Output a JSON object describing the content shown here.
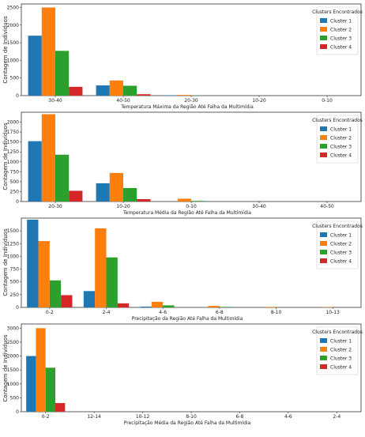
{
  "colors": {
    "Cluster 1": "#1f77b4",
    "Cluster 2": "#ff7f0e",
    "Cluster 3": "#2ca02c",
    "Cluster 4": "#d62728"
  },
  "chart_data": [
    {
      "type": "bar",
      "categories": [
        "30-40",
        "40-50",
        "20-30",
        "10-20",
        "0-10"
      ],
      "series": [
        {
          "name": "Cluster 1",
          "values": [
            1700,
            290,
            10,
            0,
            0
          ]
        },
        {
          "name": "Cluster 2",
          "values": [
            2500,
            430,
            20,
            0,
            0
          ]
        },
        {
          "name": "Cluster 3",
          "values": [
            1270,
            280,
            5,
            0,
            0
          ]
        },
        {
          "name": "Cluster 4",
          "values": [
            250,
            40,
            0,
            0,
            0
          ]
        }
      ],
      "xlabel": "Temperatura Máxima da Região Até Falha da Multimídia",
      "ylabel": "Contagem de Indivíduos",
      "ylim": [
        0,
        2600
      ],
      "yticks": [
        0,
        500,
        1000,
        1500,
        2000,
        2500
      ],
      "legend_title": "Clusters Encontrados",
      "legend_position": "top-right"
    },
    {
      "type": "bar",
      "categories": [
        "20-30",
        "10-20",
        "0-10",
        "30-40",
        "40-50"
      ],
      "series": [
        {
          "name": "Cluster 1",
          "values": [
            1520,
            460,
            0,
            0,
            0
          ]
        },
        {
          "name": "Cluster 2",
          "values": [
            2200,
            720,
            70,
            0,
            0
          ]
        },
        {
          "name": "Cluster 3",
          "values": [
            1180,
            340,
            15,
            0,
            0
          ]
        },
        {
          "name": "Cluster 4",
          "values": [
            270,
            60,
            0,
            0,
            0
          ]
        }
      ],
      "xlabel": "Temperatura Média da Região Até Falha da Multimídia",
      "ylabel": "Contagem de Indivíduos",
      "ylim": [
        0,
        2250
      ],
      "yticks": [
        0,
        250,
        500,
        750,
        1000,
        1250,
        1500,
        1750,
        2000
      ],
      "legend_title": "Clusters Encontrados",
      "legend_position": "top-right"
    },
    {
      "type": "bar",
      "categories": [
        "0-2",
        "2-4",
        "4-6",
        "6-8",
        "8-10",
        "10-13"
      ],
      "series": [
        {
          "name": "Cluster 1",
          "values": [
            1720,
            320,
            15,
            0,
            0,
            0
          ]
        },
        {
          "name": "Cluster 2",
          "values": [
            1300,
            1550,
            110,
            30,
            10,
            5
          ]
        },
        {
          "name": "Cluster 3",
          "values": [
            530,
            980,
            40,
            10,
            0,
            0
          ]
        },
        {
          "name": "Cluster 4",
          "values": [
            240,
            80,
            0,
            0,
            0,
            0
          ]
        }
      ],
      "xlabel": "Precipitação da Região Até Falha da Multimídia",
      "ylabel": "Contagem de Indivíduos",
      "ylim": [
        0,
        1750
      ],
      "yticks": [
        0,
        250,
        500,
        750,
        1000,
        1250,
        1500
      ],
      "legend_title": "Clusters Encontrados",
      "legend_position": "top-right"
    },
    {
      "type": "bar",
      "categories": [
        "0-2",
        "12-14",
        "10-12",
        "8-10",
        "6-8",
        "4-6",
        "2-4"
      ],
      "series": [
        {
          "name": "Cluster 1",
          "values": [
            2000,
            0,
            0,
            0,
            0,
            0,
            0
          ]
        },
        {
          "name": "Cluster 2",
          "values": [
            3000,
            0,
            0,
            0,
            0,
            0,
            0
          ]
        },
        {
          "name": "Cluster 3",
          "values": [
            1580,
            0,
            0,
            0,
            0,
            0,
            0
          ]
        },
        {
          "name": "Cluster 4",
          "values": [
            310,
            0,
            0,
            0,
            0,
            0,
            0
          ]
        }
      ],
      "xlabel": "Precipitação Média da Região Até Falha da Multimídia",
      "ylabel": "Contagem de Indivíduos",
      "ylim": [
        0,
        3150
      ],
      "yticks": [
        0,
        500,
        1000,
        1500,
        2000,
        2500,
        3000
      ],
      "legend_title": "Clusters Encontrados",
      "legend_position": "top-right"
    }
  ]
}
